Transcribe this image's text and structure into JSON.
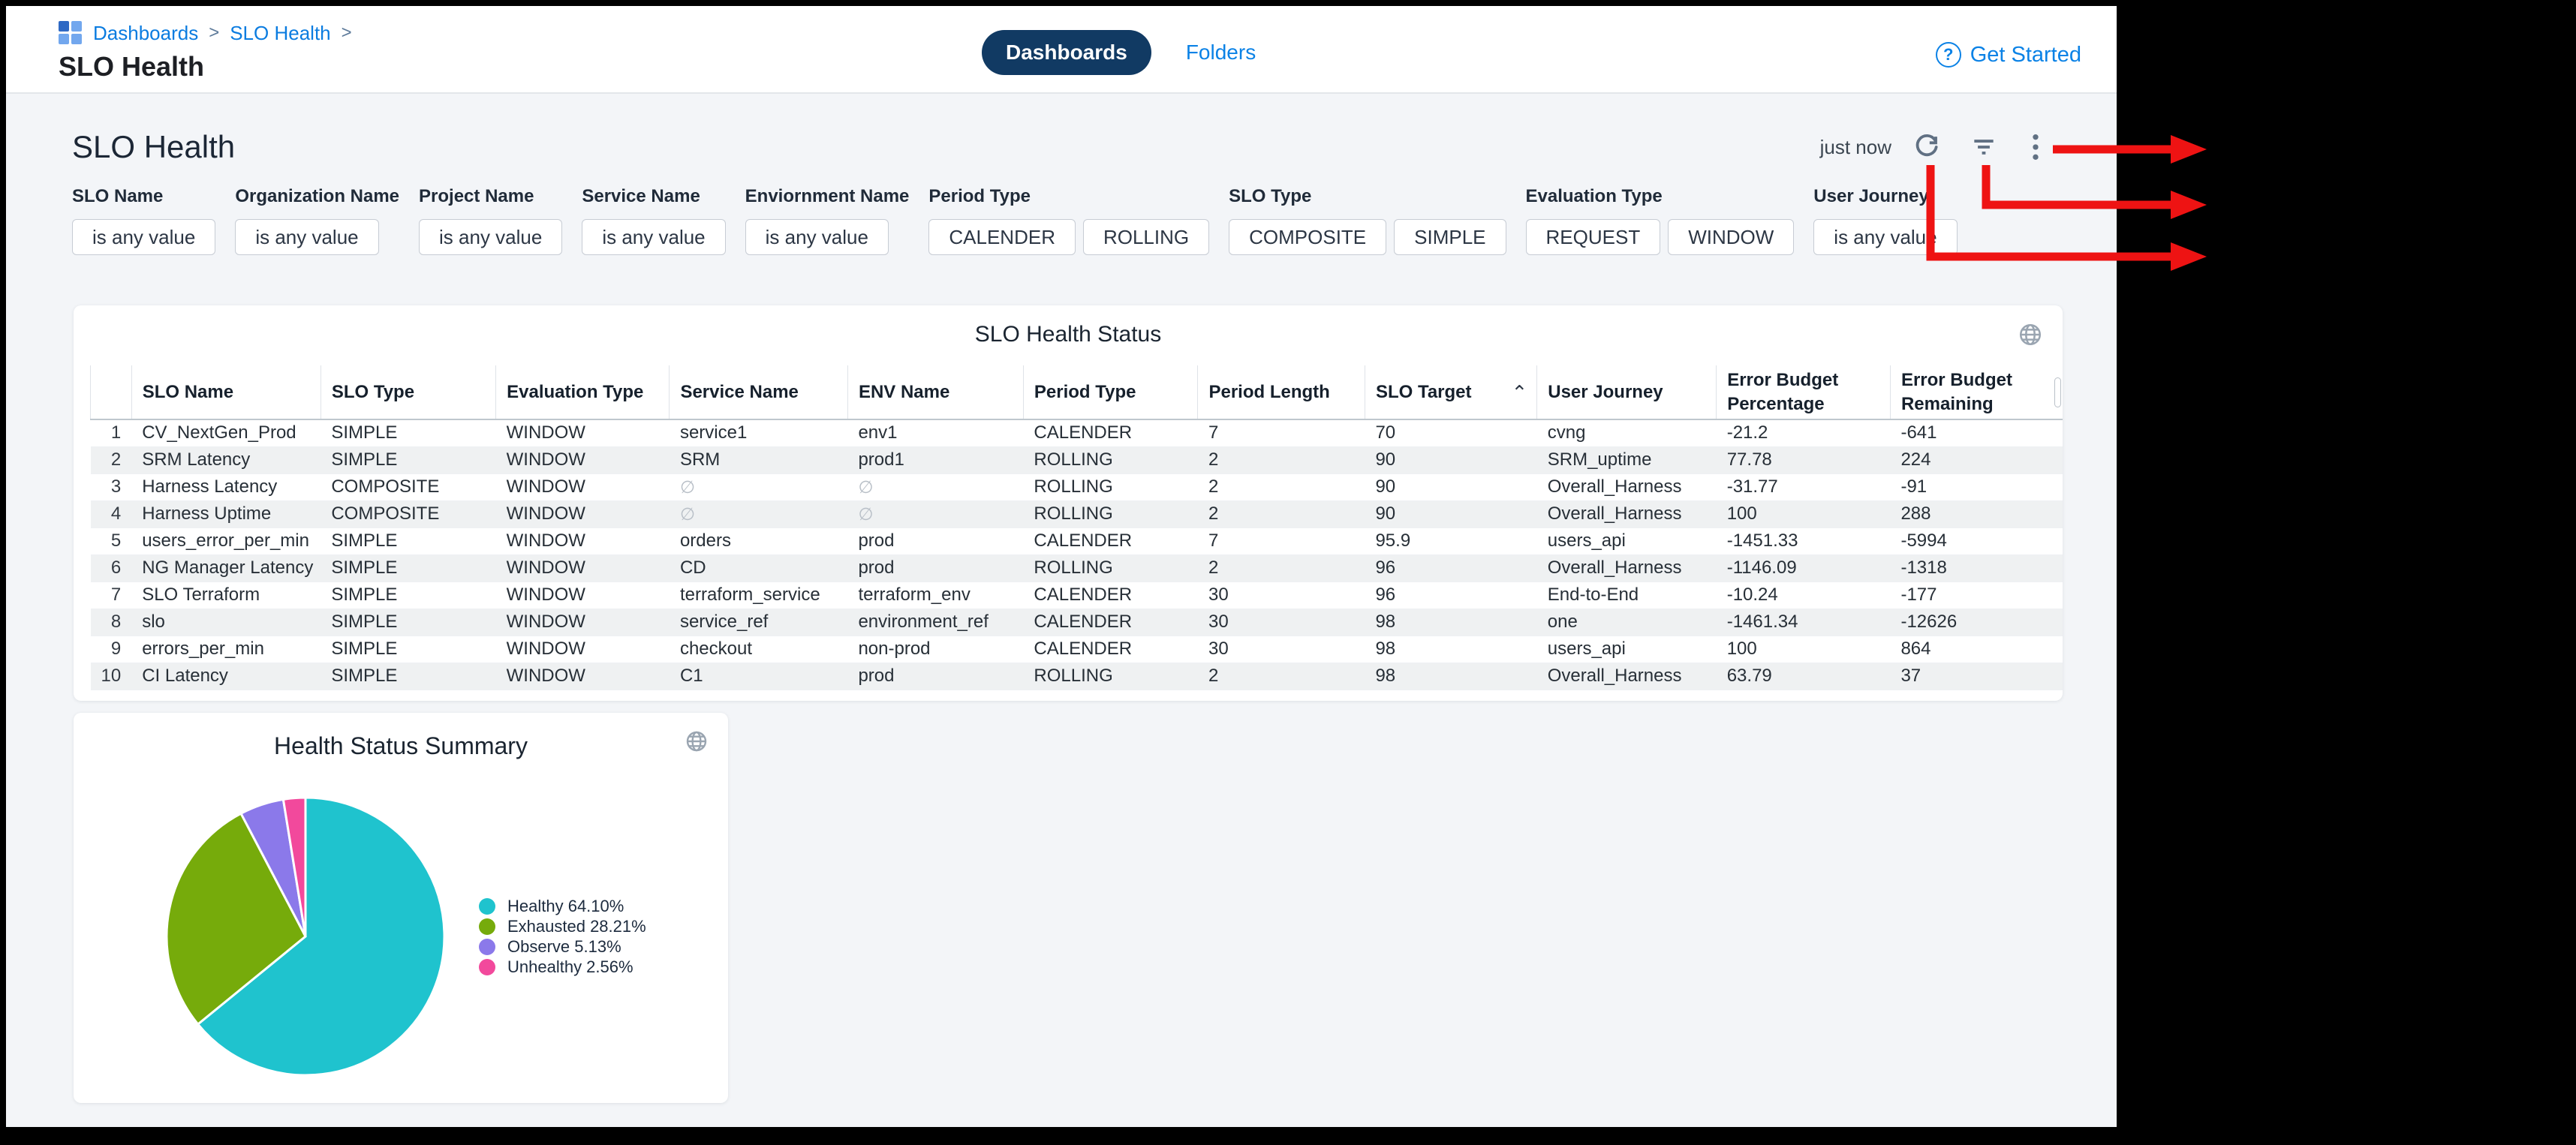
{
  "topbar": {
    "breadcrumb": [
      "Dashboards",
      "SLO Health"
    ],
    "breadcrumb_separator": ">",
    "title": "SLO Health",
    "tabs": [
      "Dashboards",
      "Folders"
    ],
    "active_tab": "Dashboards",
    "get_started": "Get Started"
  },
  "toolbar": {
    "title": "SLO Health",
    "updated": "just now",
    "icons": [
      "refresh-icon",
      "filter-icon",
      "kebab-menu-icon"
    ]
  },
  "icons": {
    "help_glyph": "?",
    "sort_asc_glyph": "⌃"
  },
  "filters": {
    "groups": [
      {
        "label": "SLO Name",
        "controls": [
          {
            "kind": "dropdown",
            "label": "is any value"
          }
        ]
      },
      {
        "label": "Organization Name",
        "controls": [
          {
            "kind": "dropdown",
            "label": "is any value"
          }
        ]
      },
      {
        "label": "Project Name",
        "controls": [
          {
            "kind": "dropdown",
            "label": "is any value"
          }
        ]
      },
      {
        "label": "Service Name",
        "controls": [
          {
            "kind": "dropdown",
            "label": "is any value"
          }
        ]
      },
      {
        "label": "Enviornment Name",
        "controls": [
          {
            "kind": "dropdown",
            "label": "is any value"
          }
        ]
      },
      {
        "label": "Period Type",
        "controls": [
          {
            "kind": "toggle",
            "label": "CALENDER"
          },
          {
            "kind": "toggle",
            "label": "ROLLING"
          }
        ]
      },
      {
        "label": "SLO Type",
        "controls": [
          {
            "kind": "toggle",
            "label": "COMPOSITE"
          },
          {
            "kind": "toggle",
            "label": "SIMPLE"
          }
        ]
      },
      {
        "label": "Evaluation Type",
        "controls": [
          {
            "kind": "toggle",
            "label": "REQUEST"
          },
          {
            "kind": "toggle",
            "label": "WINDOW"
          }
        ]
      },
      {
        "label": "User Journey",
        "controls": [
          {
            "kind": "dropdown",
            "label": "is any value"
          }
        ]
      }
    ]
  },
  "table": {
    "title": "SLO Health Status",
    "columns": [
      "SLO Name",
      "SLO Type",
      "Evaluation Type",
      "Service Name",
      "ENV Name",
      "Period Type",
      "Period Length",
      "SLO Target",
      "User Journey",
      "Error Budget Percentage",
      "Error Budget Remaining"
    ],
    "sort": {
      "column": "SLO Target",
      "direction": "asc"
    },
    "rows": [
      [
        "1",
        "CV_NextGen_Prod",
        "SIMPLE",
        "WINDOW",
        "service1",
        "env1",
        "CALENDER",
        "7",
        "70",
        "cvng",
        "-21.2",
        "-641"
      ],
      [
        "2",
        "SRM Latency",
        "SIMPLE",
        "WINDOW",
        "SRM",
        "prod1",
        "ROLLING",
        "2",
        "90",
        "SRM_uptime",
        "77.78",
        "224"
      ],
      [
        "3",
        "Harness Latency",
        "COMPOSITE",
        "WINDOW",
        "∅",
        "∅",
        "ROLLING",
        "2",
        "90",
        "Overall_Harness",
        "-31.77",
        "-91"
      ],
      [
        "4",
        "Harness Uptime",
        "COMPOSITE",
        "WINDOW",
        "∅",
        "∅",
        "ROLLING",
        "2",
        "90",
        "Overall_Harness",
        "100",
        "288"
      ],
      [
        "5",
        "users_error_per_min",
        "SIMPLE",
        "WINDOW",
        "orders",
        "prod",
        "CALENDER",
        "7",
        "95.9",
        "users_api",
        "-1451.33",
        "-5994"
      ],
      [
        "6",
        "NG Manager Latency",
        "SIMPLE",
        "WINDOW",
        "CD",
        "prod",
        "ROLLING",
        "2",
        "96",
        "Overall_Harness",
        "-1146.09",
        "-1318"
      ],
      [
        "7",
        "SLO Terraform",
        "SIMPLE",
        "WINDOW",
        "terraform_service",
        "terraform_env",
        "CALENDER",
        "30",
        "96",
        "End-to-End",
        "-10.24",
        "-177"
      ],
      [
        "8",
        "slo",
        "SIMPLE",
        "WINDOW",
        "service_ref",
        "environment_ref",
        "CALENDER",
        "30",
        "98",
        "one",
        "-1461.34",
        "-12626"
      ],
      [
        "9",
        "errors_per_min",
        "SIMPLE",
        "WINDOW",
        "checkout",
        "non-prod",
        "CALENDER",
        "30",
        "98",
        "users_api",
        "100",
        "864"
      ],
      [
        "10",
        "CI Latency",
        "SIMPLE",
        "WINDOW",
        "C1",
        "prod",
        "ROLLING",
        "2",
        "98",
        "Overall_Harness",
        "63.79",
        "37"
      ]
    ]
  },
  "chart_data": {
    "type": "pie",
    "title": "Health Status Summary",
    "labels": [
      "Healthy",
      "Exhausted",
      "Observe",
      "Unhealthy"
    ],
    "values": [
      64.1,
      28.21,
      5.13,
      2.56
    ],
    "colors": [
      "#1fc3ce",
      "#76ab0b",
      "#8b79ea",
      "#f2499c"
    ],
    "legend_position": "right",
    "start_angle_deg": 0,
    "direction": "clockwise"
  },
  "annotations": {
    "color": "#ee1313",
    "arrows": [
      {
        "target": "kebab-menu-icon"
      },
      {
        "target": "filter-icon"
      },
      {
        "target": "refresh-icon"
      }
    ]
  }
}
